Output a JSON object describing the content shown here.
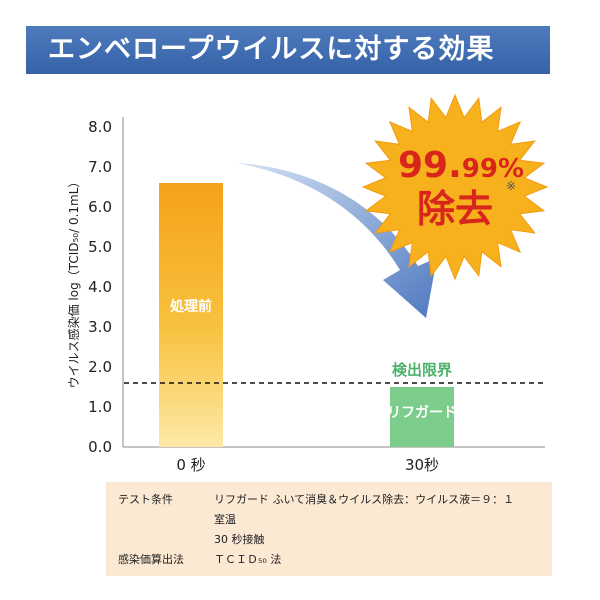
{
  "header": {
    "title": "エンベロープウイルスに対する効果"
  },
  "colors": {
    "header_bg": "#3d68ad",
    "bar_before_top": "#f5a21b",
    "bar_before_bottom": "#fde9a8",
    "bar_after": "#7ccc8b",
    "detection_text": "#4db36a",
    "burst": "#f6b11c",
    "burst_text": "#d8261c",
    "notes_bg": "#fbe9d4",
    "arrow": "#5b82c5"
  },
  "chart_data": {
    "type": "bar",
    "categories": [
      "0 秒",
      "30秒"
    ],
    "values": [
      6.6,
      1.5
    ],
    "bar_labels": [
      "処理前",
      "リフガード"
    ],
    "ylabel": "ウイルス感染価 log（TCID₅₀/ 0.1mL）",
    "ylim": [
      0,
      8
    ],
    "yticks": [
      "0.0",
      "1.0",
      "2.0",
      "3.0",
      "4.0",
      "5.0",
      "6.0",
      "7.0",
      "8.0"
    ],
    "detection_limit": {
      "value": 1.5,
      "label": "検出限界"
    },
    "grid": false
  },
  "burst": {
    "percent_main": "99.",
    "percent_small": "99%",
    "text": "除去",
    "mark": "※"
  },
  "notes": {
    "rows": [
      {
        "key": "テスト条件",
        "value": "リフガード ふいて消臭＆ウイルス除去：ウイルス液＝９：１"
      },
      {
        "key": "",
        "value": "室温"
      },
      {
        "key": "",
        "value": "30 秒接触"
      },
      {
        "key": "感染価算出法",
        "value": "ＴＣＩＤ₅₀ 法"
      }
    ]
  }
}
